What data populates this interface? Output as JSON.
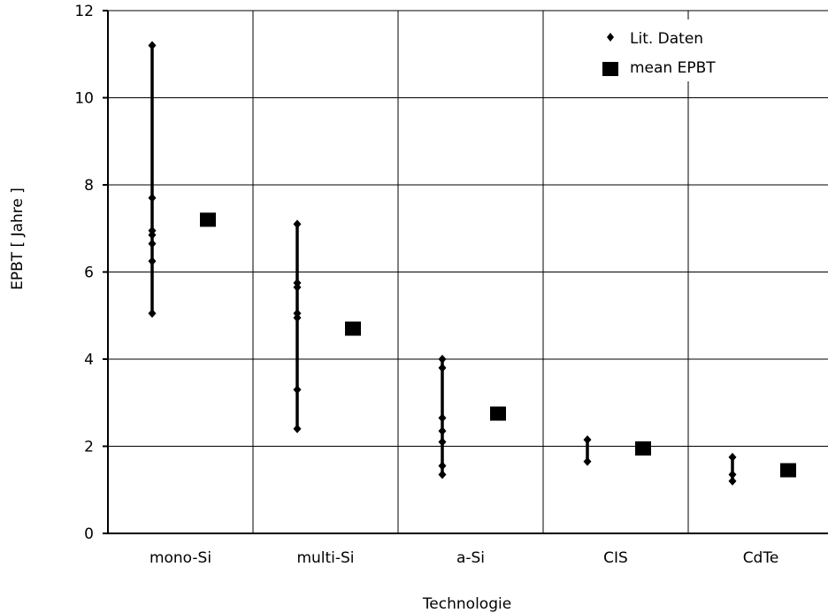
{
  "chart_data": {
    "type": "scatter",
    "xlabel": "Technologie",
    "ylabel": "EPBT [ Jahre ]",
    "ylim": [
      0,
      12
    ],
    "yticks": [
      0,
      2,
      4,
      6,
      8,
      10,
      12
    ],
    "grid": true,
    "legend_position": "top-right",
    "categories": [
      "mono-Si",
      "multi-Si",
      "a-Si",
      "CIS",
      "CdTe"
    ],
    "series": [
      {
        "name": "Lit. Daten",
        "marker": "diamond",
        "ranges": [
          [
            5.05,
            11.2
          ],
          [
            2.4,
            7.1
          ],
          [
            1.35,
            4.0
          ],
          [
            1.65,
            2.15
          ],
          [
            1.2,
            1.75
          ]
        ],
        "points": [
          [
            11.2,
            7.7,
            6.95,
            6.85,
            6.65,
            6.25,
            5.05
          ],
          [
            7.1,
            5.75,
            5.65,
            5.05,
            4.95,
            3.3,
            2.4
          ],
          [
            4.0,
            3.8,
            2.65,
            2.35,
            2.1,
            1.55,
            1.35
          ],
          [
            2.15,
            1.65
          ],
          [
            1.75,
            1.35,
            1.2
          ]
        ]
      },
      {
        "name": "mean EPBT",
        "marker": "square",
        "values": [
          7.2,
          4.7,
          2.75,
          1.95,
          1.45
        ]
      }
    ],
    "colors": {
      "marker": "#000000",
      "grid": "#000000"
    }
  }
}
